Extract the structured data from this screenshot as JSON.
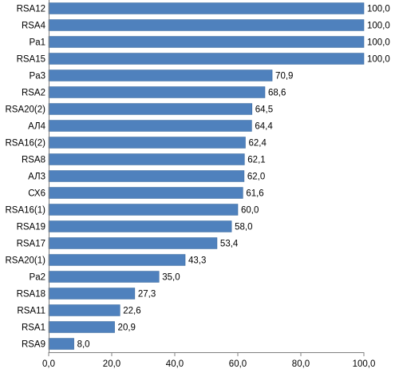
{
  "chart_data": {
    "type": "bar",
    "orientation": "horizontal",
    "title": "",
    "xlabel": "",
    "ylabel": "",
    "xlim": [
      0,
      100
    ],
    "x_ticks": [
      0,
      20,
      40,
      60,
      80,
      100
    ],
    "x_tick_labels": [
      "0,0",
      "20,0",
      "40,0",
      "60,0",
      "80,0",
      "100,0"
    ],
    "grid": false,
    "legend": "none",
    "bar_color": "#4F81BD",
    "bar_edge_color": "#3A6AA0",
    "categories": [
      "RSA12",
      "RSA4",
      "Pa1",
      "RSA15",
      "Pa3",
      "RSA2",
      "RSA20(2)",
      "АЛ4",
      "RSA16(2)",
      "RSA8",
      "АЛ3",
      "СХ6",
      "RSA16(1)",
      "RSA19",
      "RSA17",
      "RSA20(1)",
      "Pa2",
      "RSA18",
      "RSA11",
      "RSA1",
      "RSA9"
    ],
    "values": [
      100.0,
      100.0,
      100.0,
      100.0,
      70.9,
      68.6,
      64.5,
      64.4,
      62.4,
      62.1,
      62.0,
      61.6,
      60.0,
      58.0,
      53.4,
      43.3,
      35.0,
      27.3,
      22.6,
      20.9,
      8.0
    ],
    "value_labels": [
      "100,0",
      "100,0",
      "100,0",
      "100,0",
      "70,9",
      "68,6",
      "64,5",
      "64,4",
      "62,4",
      "62,1",
      "62,0",
      "61,6",
      "60,0",
      "58,0",
      "53,4",
      "43,3",
      "35,0",
      "27,3",
      "22,6",
      "20,9",
      "8,0"
    ]
  }
}
